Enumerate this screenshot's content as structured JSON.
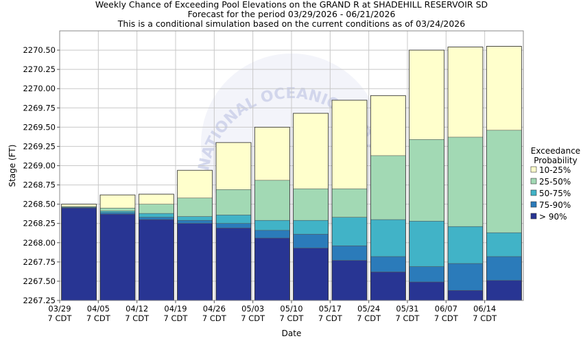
{
  "titles": [
    "Weekly Chance of Exceeding Pool Elevations on the GRAND R at SHADEHILL RESERVOIR SD",
    "Forecast for the period 03/29/2026 - 06/21/2026",
    "This is a conditional simulation based on the current conditions as of 03/24/2026"
  ],
  "watermark": "NATIONAL OCEANIC AND ATMOSPHERIC ADMINISTRATION",
  "colors": {
    "gt90": "#283593",
    "p75_90": "#2b7bba",
    "p50_75": "#41b3c7",
    "p25_50": "#a2d9b4",
    "p10_25": "#ffffcc",
    "watermark": "#c7cde8"
  },
  "chart_data": {
    "type": "bar",
    "stacked": true,
    "xlabel": "Date",
    "ylabel": "Stage (FT)",
    "ylim": [
      2267.25,
      2270.75
    ],
    "yticks": [
      "2267.25",
      "2267.50",
      "2267.75",
      "2268.00",
      "2268.25",
      "2268.50",
      "2268.75",
      "2269.00",
      "2269.25",
      "2269.50",
      "2269.75",
      "2270.00",
      "2270.25",
      "2270.50"
    ],
    "categories": [
      "03/29",
      "04/05",
      "04/12",
      "04/19",
      "04/26",
      "05/03",
      "05/10",
      "05/17",
      "05/24",
      "05/31",
      "06/07",
      "06/14"
    ],
    "category_sublabel": "7 CDT",
    "legend": {
      "title_lines": [
        "Exceedance",
        "Probability"
      ],
      "placement": "right",
      "entries": [
        "10-25%",
        "25-50%",
        "50-75%",
        "75-90%",
        "> 90%"
      ]
    },
    "bars": [
      {
        "date": "03/29",
        "gt90": 2268.45,
        "p75_90": 2268.46,
        "p50_75": 2268.46,
        "p25_50": 2268.47,
        "p10_25": 2268.5
      },
      {
        "date": "04/05",
        "gt90": 2268.37,
        "p75_90": 2268.39,
        "p50_75": 2268.41,
        "p25_50": 2268.45,
        "p10_25": 2268.62
      },
      {
        "date": "04/12",
        "gt90": 2268.3,
        "p75_90": 2268.33,
        "p50_75": 2268.38,
        "p25_50": 2268.5,
        "p10_25": 2268.63
      },
      {
        "date": "04/19",
        "gt90": 2268.25,
        "p75_90": 2268.29,
        "p50_75": 2268.34,
        "p25_50": 2268.58,
        "p10_25": 2268.94
      },
      {
        "date": "04/26",
        "gt90": 2268.19,
        "p75_90": 2268.25,
        "p50_75": 2268.36,
        "p25_50": 2268.69,
        "p10_25": 2269.3
      },
      {
        "date": "05/03",
        "gt90": 2268.06,
        "p75_90": 2268.16,
        "p50_75": 2268.29,
        "p25_50": 2268.81,
        "p10_25": 2269.5
      },
      {
        "date": "05/10",
        "gt90": 2267.93,
        "p75_90": 2268.11,
        "p50_75": 2268.29,
        "p25_50": 2268.7,
        "p10_25": 2269.68
      },
      {
        "date": "05/17",
        "gt90": 2267.77,
        "p75_90": 2267.96,
        "p50_75": 2268.33,
        "p25_50": 2268.7,
        "p10_25": 2269.85
      },
      {
        "date": "05/24",
        "gt90": 2267.62,
        "p75_90": 2267.82,
        "p50_75": 2268.3,
        "p25_50": 2269.13,
        "p10_25": 2269.91
      },
      {
        "date": "05/31",
        "gt90": 2267.49,
        "p75_90": 2267.69,
        "p50_75": 2268.28,
        "p25_50": 2269.34,
        "p10_25": 2270.5
      },
      {
        "date": "06/07",
        "gt90": 2267.38,
        "p75_90": 2267.73,
        "p50_75": 2268.21,
        "p25_50": 2269.37,
        "p10_25": 2270.54
      },
      {
        "date": "06/14",
        "gt90": 2267.51,
        "p75_90": 2267.82,
        "p50_75": 2268.13,
        "p25_50": 2269.46,
        "p10_25": 2270.55
      }
    ]
  }
}
